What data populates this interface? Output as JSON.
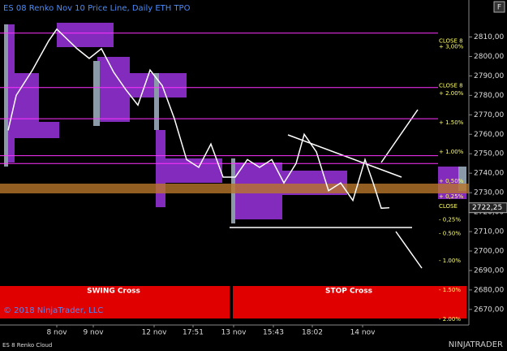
{
  "chart_data": {
    "type": "line",
    "title": "ES 08 Renko Nov 10  Price Line, Daily ETH TPO",
    "xlim": [
      0,
      578
    ],
    "xticks": [
      {
        "value": 70,
        "label": "8 nov"
      },
      {
        "value": 115,
        "label": "9 nov"
      },
      {
        "value": 190,
        "label": "12 nov"
      },
      {
        "value": 238,
        "label": "17:51"
      },
      {
        "value": 288,
        "label": "13 nov"
      },
      {
        "value": 337,
        "label": "15:43"
      },
      {
        "value": 385,
        "label": "18:02"
      },
      {
        "value": 447,
        "label": "14 nov"
      }
    ],
    "ylim": [
      2662,
      2829
    ],
    "yticks": [
      {
        "value": 2670,
        "label": "2670,00"
      },
      {
        "value": 2680,
        "label": "2680,00"
      },
      {
        "value": 2690,
        "label": "2690,00"
      },
      {
        "value": 2700,
        "label": "2700,00"
      },
      {
        "value": 2710,
        "label": "2710,00"
      },
      {
        "value": 2720,
        "label": "2720,00"
      },
      {
        "value": 2730,
        "label": "2730,00"
      },
      {
        "value": 2740,
        "label": "2740,00"
      },
      {
        "value": 2750,
        "label": "2750,00"
      },
      {
        "value": 2760,
        "label": "2760,00"
      },
      {
        "value": 2770,
        "label": "2770,00"
      },
      {
        "value": 2780,
        "label": "2780,00"
      },
      {
        "value": 2790,
        "label": "2790,00"
      },
      {
        "value": 2800,
        "label": "2800,00"
      },
      {
        "value": 2810,
        "label": "2810,00"
      }
    ],
    "x": [
      10,
      20,
      40,
      60,
      70,
      80,
      95,
      110,
      125,
      140,
      155,
      170,
      185,
      200,
      215,
      230,
      245,
      260,
      275,
      290,
      305,
      320,
      335,
      350,
      365,
      375,
      390,
      405,
      420,
      435,
      450,
      460,
      470,
      480
    ],
    "series": [
      {
        "name": "Price Line",
        "color": "#ffffff",
        "values": [
          2762,
          2780,
          2793,
          2808,
          2814,
          2810,
          2804,
          2799,
          2804,
          2792,
          2783,
          2775,
          2793,
          2785,
          2768,
          2747,
          2743,
          2755,
          2738,
          2738,
          2747,
          2743,
          2747,
          2735,
          2745,
          2760,
          2751,
          2731,
          2735,
          2726,
          2747,
          2735,
          2722,
          2722.25
        ],
        "last_label": "2722,25"
      }
    ],
    "levels": {
      "color": "#ff33ff",
      "values": [
        2812,
        2784,
        2768,
        2749,
        2745
      ]
    },
    "level_labels": [
      {
        "value": 2808,
        "label": "CLOSE 8"
      },
      {
        "value": 2805,
        "label": "+ 3,00%"
      },
      {
        "value": 2785,
        "label": "CLOSE 8"
      },
      {
        "value": 2781,
        "label": "+ 2.00%"
      },
      {
        "value": 2766,
        "label": "+ 1.50%"
      },
      {
        "value": 2751,
        "label": "+ 1.00%"
      },
      {
        "value": 2736,
        "label": "+ 0,50%"
      },
      {
        "value": 2728,
        "label": "+ 0,25%"
      },
      {
        "value": 2723,
        "label": "CLOSE"
      },
      {
        "value": 2716,
        "label": "- 0,25%"
      },
      {
        "value": 2709,
        "label": "- 0.50%"
      },
      {
        "value": 2695,
        "label": "- 1.00%"
      },
      {
        "value": 2680,
        "label": "- 1.50%"
      },
      {
        "value": 2665,
        "label": "- 2.00%"
      }
    ],
    "level_label_color": "#ffff66",
    "bands": [
      "SWING Cross",
      "STOP Cross"
    ],
    "copyright": "© 2018 NinjaTrader, LLC",
    "footer": "ES 8 Renko Cloud",
    "logo": "NINJATRADER",
    "button": "F"
  }
}
